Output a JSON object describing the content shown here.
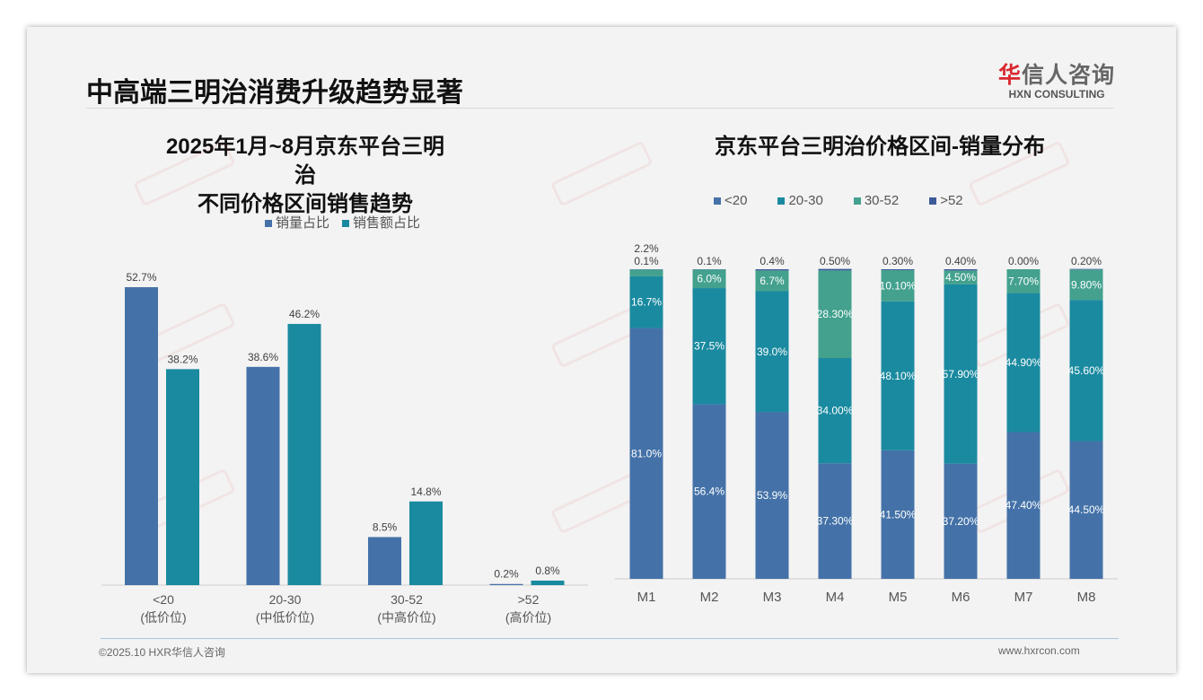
{
  "header": {
    "title": "中高端三明治消费升级趋势显著",
    "logo_cn_red": "华",
    "logo_cn": "信人咨询",
    "logo_en": "HXN CONSULTING"
  },
  "watermark": "华信人咨询",
  "footer": {
    "left": "©2025.10 HXR华信人咨询",
    "right": "www.hxrcon.com"
  },
  "colors": {
    "blue": "#4472a8",
    "teal": "#1a8aa0",
    "green": "#43a18e",
    "navy": "#3c5a9a"
  },
  "chart_data": [
    {
      "type": "bar",
      "title": [
        "2025年1月~8月京东平台三明治",
        "不同价格区间销售趋势"
      ],
      "categories": [
        [
          "<20",
          "(低价位)"
        ],
        [
          "20-30",
          "(中低价位)"
        ],
        [
          "30-52",
          "(中高价位)"
        ],
        [
          ">52",
          "(高价位)"
        ]
      ],
      "series": [
        {
          "name": "销量占比",
          "values": [
            52.7,
            38.6,
            8.5,
            0.2
          ],
          "labels": [
            "52.7%",
            "38.6%",
            "8.5%",
            "0.2%"
          ]
        },
        {
          "name": "销售额占比",
          "values": [
            38.2,
            46.2,
            14.8,
            0.8
          ],
          "labels": [
            "38.2%",
            "46.2%",
            "14.8%",
            "0.8%"
          ]
        }
      ],
      "legend": "top",
      "unit": "%"
    },
    {
      "type": "bar",
      "stacked": true,
      "title": "京东平台三明治价格区间-销量分布",
      "categories": [
        "M1",
        "M2",
        "M3",
        "M4",
        "M5",
        "M6",
        "M7",
        "M8"
      ],
      "series": [
        {
          "name": "<20",
          "values": [
            81.0,
            56.4,
            53.9,
            37.3,
            41.5,
            37.2,
            47.4,
            44.5
          ],
          "labels": [
            "81.0%",
            "56.4%",
            "53.9%",
            "37.30%",
            "41.50%",
            "37.20%",
            "47.40%",
            "44.50%"
          ]
        },
        {
          "name": "20-30",
          "values": [
            16.7,
            37.5,
            39.0,
            34.0,
            48.1,
            57.9,
            44.9,
            45.6
          ],
          "labels": [
            "16.7%",
            "37.5%",
            "39.0%",
            "34.00%",
            "48.10%",
            "57.90%",
            "44.90%",
            "45.60%"
          ]
        },
        {
          "name": "30-52",
          "values": [
            2.2,
            6.0,
            6.7,
            28.3,
            10.1,
            4.5,
            7.7,
            9.8
          ],
          "labels": [
            "2.2%",
            "6.0%",
            "6.7%",
            "28.30%",
            "10.10%",
            "4.50%",
            "7.70%",
            "9.80%"
          ]
        },
        {
          "name": ">52",
          "values": [
            0.1,
            0.1,
            0.4,
            0.5,
            0.3,
            0.4,
            0.0,
            0.2
          ],
          "labels": [
            "0.1%",
            "0.1%",
            "0.4%",
            "0.50%",
            "0.30%",
            "0.40%",
            "0.00%",
            "0.20%"
          ]
        }
      ],
      "legend": "top",
      "ylim": [
        0,
        100
      ],
      "unit": "%"
    }
  ]
}
